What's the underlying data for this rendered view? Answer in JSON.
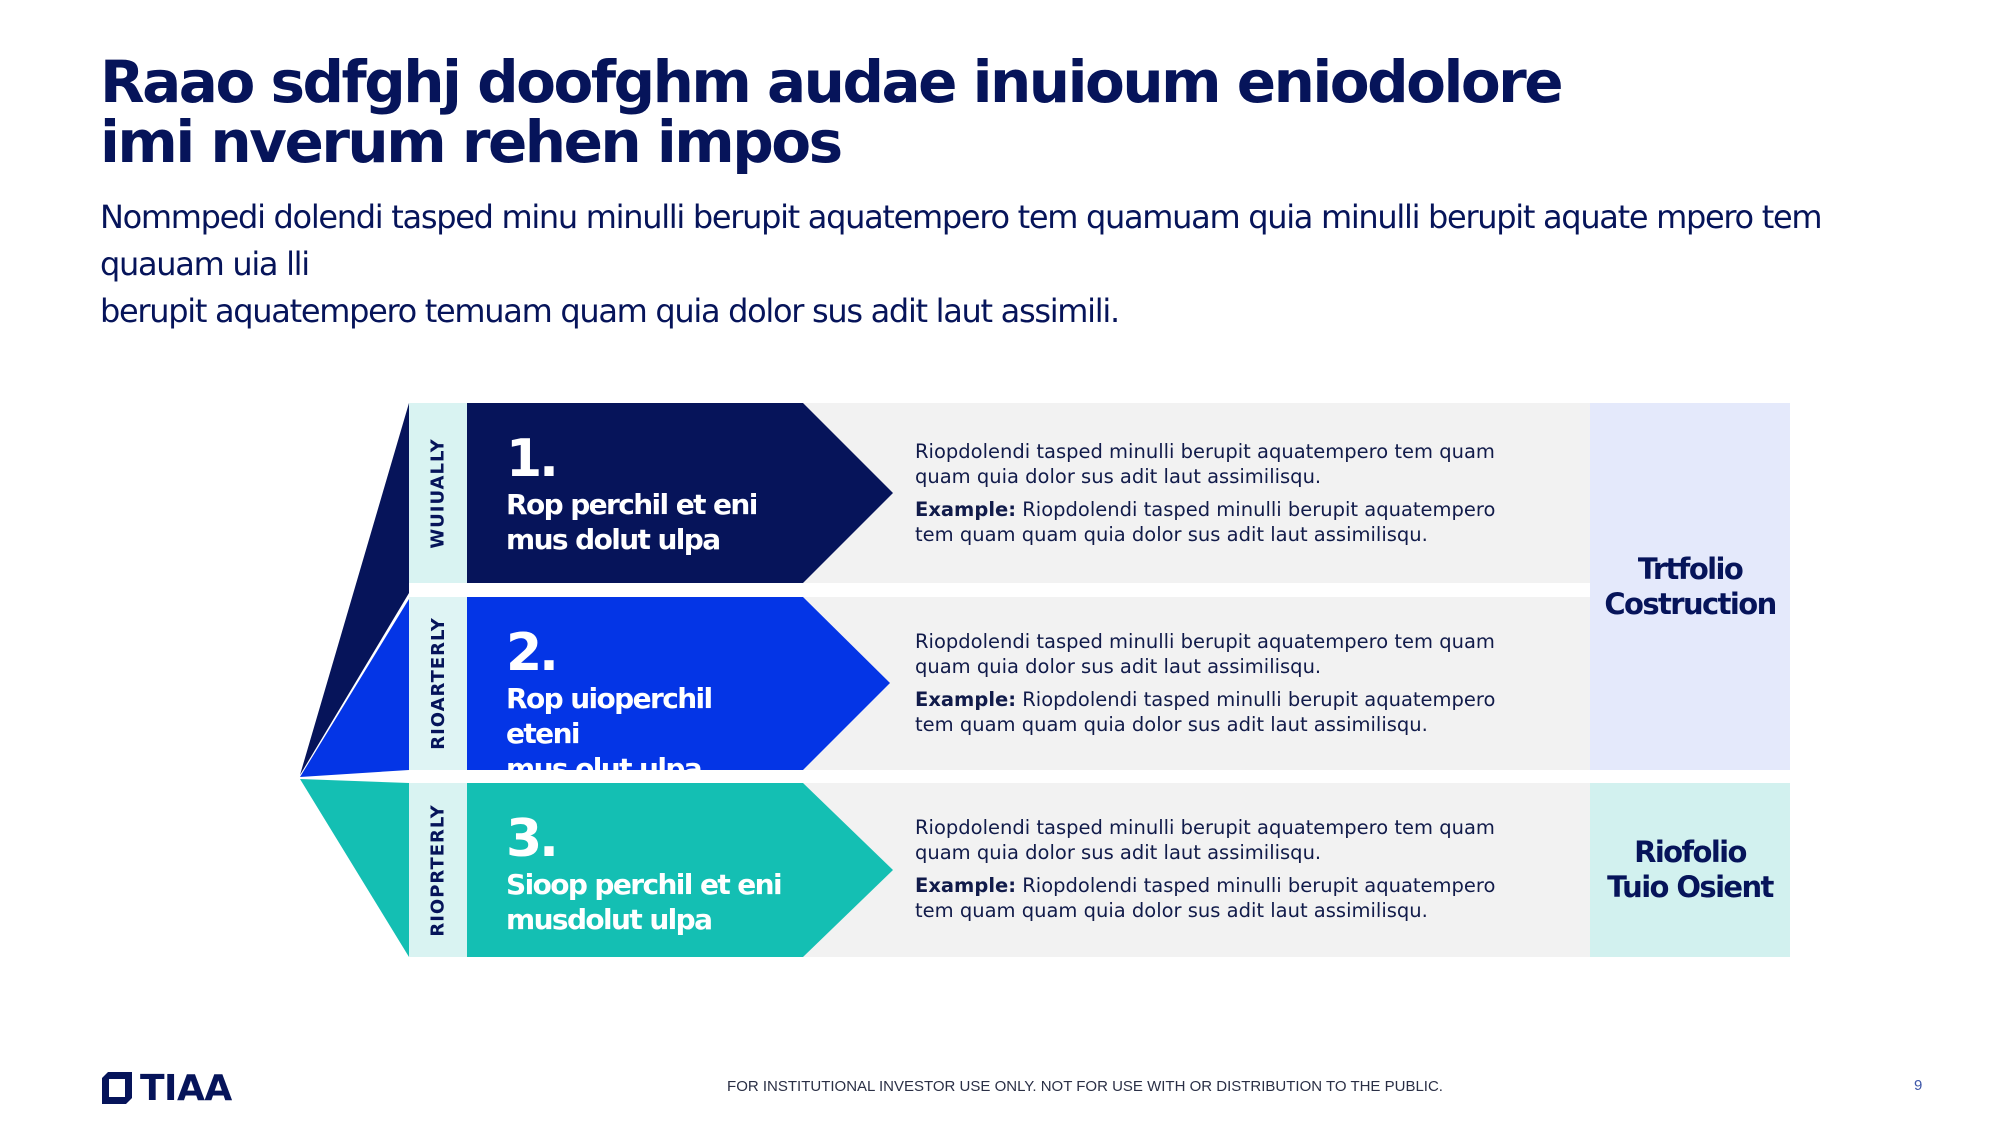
{
  "title": {
    "line1": "Raao sdfghj doofghm audae inuioum eniodolore",
    "line2": "imi nverum rehen impos"
  },
  "subtitle": {
    "line1": "Nommpedi dolendi tasped minu minulli berupit aquatempero tem quamuam quia minulli berupit aquate mpero tem quauam uia lli",
    "line2": "berupit aquatempero temuam quam quia dolor sus adit laut assimili."
  },
  "colors": {
    "navy": "#06145a",
    "blue": "#0435e6",
    "teal": "#14bfb3",
    "light_gray": "#f2f2f2",
    "lavender": "#e4e9fb",
    "mint": "#d2f1ef"
  },
  "rows": [
    {
      "frequency": "WUIUALLY",
      "number": "1.",
      "heading_line1": "Rop perchil et eni",
      "heading_line2": "mus dolut ulpa",
      "desc_line1": "Riopdolendi tasped minulli berupit aquatempero tem quam",
      "desc_line2": "quam quia dolor sus adit laut assimilisqu.",
      "example_label": "Example:",
      "example_line1": "Riopdolendi tasped minulli berupit aquatempero",
      "example_line2": "tem quam quam quia dolor sus adit laut assimilisqu."
    },
    {
      "frequency": "RIOARTERLY",
      "number": "2.",
      "heading_line1": "Rop uioperchil eteni",
      "heading_line2": "mus olut ulpa",
      "desc_line1": "Riopdolendi tasped minulli berupit aquatempero tem quam",
      "desc_line2": "quam quia dolor sus adit laut assimilisqu.",
      "example_label": "Example:",
      "example_line1": "Riopdolendi tasped minulli berupit aquatempero",
      "example_line2": "tem quam quam quia dolor sus adit laut assimilisqu."
    },
    {
      "frequency": "RIOPRTERLY",
      "number": "3.",
      "heading_line1": "Sioop perchil et eni",
      "heading_line2": "musdolut ulpa",
      "desc_line1": "Riopdolendi tasped minulli berupit aquatempero tem quam",
      "desc_line2": "quam quia dolor sus adit laut assimilisqu.",
      "example_label": "Example:",
      "example_line1": "Riopdolendi tasped minulli berupit aquatempero",
      "example_line2": "tem quam quam quia dolor sus adit laut assimilisqu."
    }
  ],
  "categories": [
    {
      "line1": "Trtfolio",
      "line2": "Costruction"
    },
    {
      "line1": "Riofolio",
      "line2": "Tuio Osient"
    }
  ],
  "footer": {
    "logo_text": "TIAA",
    "disclaimer": "FOR INSTITUTIONAL INVESTOR USE ONLY. NOT FOR USE WITH OR DISTRIBUTION TO THE PUBLIC.",
    "page_number": "9"
  }
}
